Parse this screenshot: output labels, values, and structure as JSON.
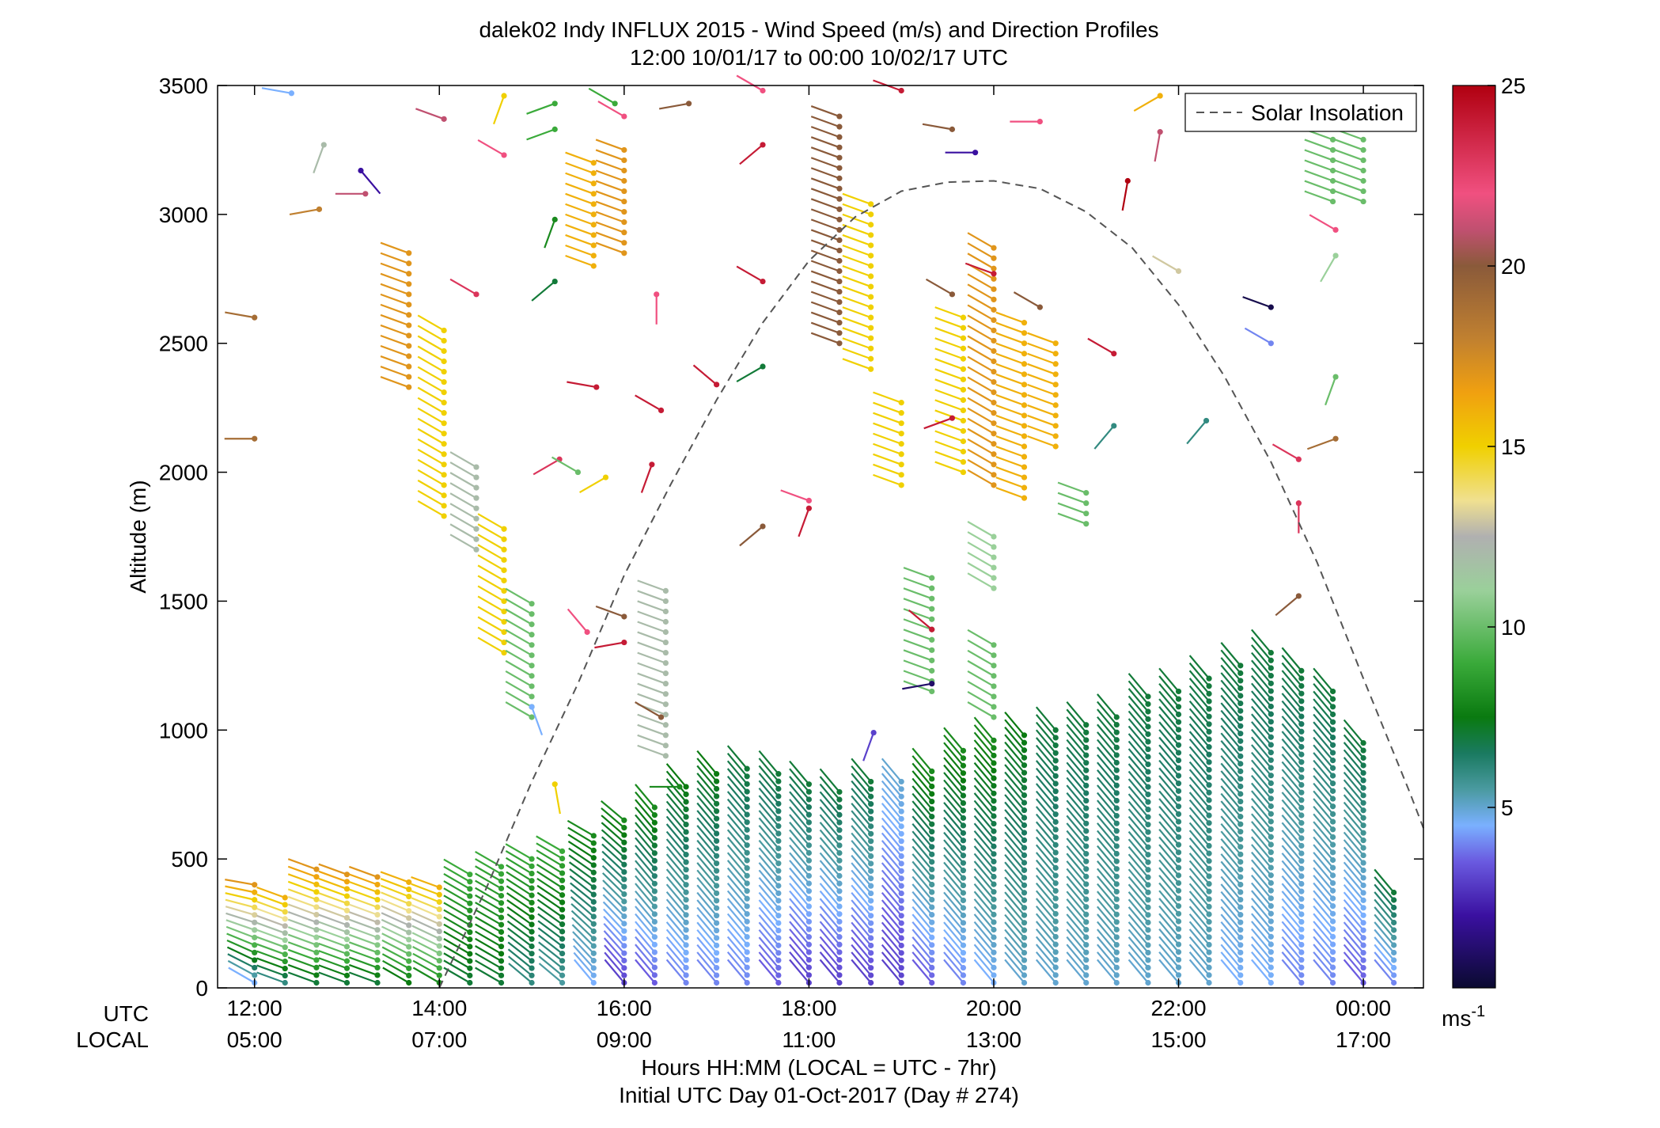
{
  "chart_data": {
    "type": "wind-profile",
    "title": "dalek02 Indy INFLUX 2015 - Wind Speed (m/s) and Direction Profiles",
    "subtitle": "12:00 10/01/17 to 00:00 10/02/17  UTC",
    "ylabel": "Altitude (m)",
    "xlabel": "Hours HH:MM  (LOCAL = UTC - 7hr)",
    "xlabel2": "Initial UTC Day 01-Oct-2017 (Day # 274)",
    "row_label_utc": "UTC",
    "row_label_local": "LOCAL",
    "ylim": [
      0,
      3500
    ],
    "xlim_hours": [
      11.6,
      24.65
    ],
    "y_ticks": [
      "0",
      "500",
      "1000",
      "1500",
      "2000",
      "2500",
      "3000",
      "3500"
    ],
    "y_tick_values": [
      0,
      500,
      1000,
      1500,
      2000,
      2500,
      3000,
      3500
    ],
    "x_tick_hours": [
      12,
      14,
      16,
      18,
      20,
      22,
      24
    ],
    "x_ticks_utc": [
      "12:00",
      "14:00",
      "16:00",
      "18:00",
      "20:00",
      "22:00",
      "00:00"
    ],
    "x_ticks_local": [
      "05:00",
      "07:00",
      "09:00",
      "11:00",
      "13:00",
      "15:00",
      "17:00"
    ],
    "legend": {
      "label": "Solar Insolation",
      "position": "top-right",
      "style": "dashed",
      "color": "#555555"
    },
    "colorbar": {
      "range": [
        0,
        25
      ],
      "ticks": [
        "5",
        "10",
        "15",
        "20",
        "25"
      ],
      "tick_values": [
        5,
        10,
        15,
        20,
        25
      ],
      "unit_label": "ms",
      "unit_superscript": "-1",
      "colors": [
        {
          "v": 0,
          "c": "#0a0a30"
        },
        {
          "v": 2,
          "c": "#3a10a0"
        },
        {
          "v": 3.5,
          "c": "#6a5ae0"
        },
        {
          "v": 4.5,
          "c": "#7ab0ff"
        },
        {
          "v": 5.5,
          "c": "#4a9aa0"
        },
        {
          "v": 6.5,
          "c": "#1a7a60"
        },
        {
          "v": 7.5,
          "c": "#0a7a10"
        },
        {
          "v": 9,
          "c": "#3aaa3a"
        },
        {
          "v": 11,
          "c": "#9ad09a"
        },
        {
          "v": 12.5,
          "c": "#b0b0b0"
        },
        {
          "v": 13.5,
          "c": "#f0e090"
        },
        {
          "v": 15,
          "c": "#f0d000"
        },
        {
          "v": 16.5,
          "c": "#f0a010"
        },
        {
          "v": 18,
          "c": "#c08030"
        },
        {
          "v": 20,
          "c": "#8a5a3a"
        },
        {
          "v": 21,
          "c": "#c05070"
        },
        {
          "v": 22,
          "c": "#f05080"
        },
        {
          "v": 25,
          "c": "#b00010"
        }
      ]
    },
    "solar_insolation": {
      "hours": [
        14.0,
        14.5,
        15.0,
        15.5,
        16.0,
        16.5,
        17.0,
        17.5,
        18.0,
        18.5,
        19.0,
        19.5,
        20.0,
        20.5,
        21.0,
        21.5,
        22.0,
        22.5,
        23.0,
        23.5,
        24.0,
        24.5,
        24.65
      ],
      "altitude_equiv": [
        0,
        380,
        800,
        1180,
        1600,
        1950,
        2280,
        2580,
        2820,
        2990,
        3090,
        3125,
        3130,
        3100,
        3010,
        2870,
        2650,
        2370,
        2040,
        1650,
        1200,
        760,
        620
      ]
    },
    "profiles": [
      {
        "t": 12.0,
        "ymax": 400,
        "dz": 30,
        "dir": [
          300,
          280
        ],
        "spd": [
          4.5,
          17
        ]
      },
      {
        "t": 12.33,
        "ymax": 350,
        "dz": 30,
        "dir": [
          290,
          290
        ],
        "spd": [
          6,
          16
        ]
      },
      {
        "t": 12.67,
        "ymax": 460,
        "dz": 30,
        "dir": [
          290,
          290
        ],
        "spd": [
          7,
          17
        ]
      },
      {
        "t": 13.0,
        "ymax": 440,
        "dz": 30,
        "dir": [
          290,
          290
        ],
        "spd": [
          7,
          17
        ]
      },
      {
        "t": 13.33,
        "ymax": 430,
        "dz": 30,
        "dir": [
          290,
          290
        ],
        "spd": [
          7,
          17
        ]
      },
      {
        "t": 13.67,
        "ymax": 410,
        "dz": 30,
        "dir": [
          300,
          290
        ],
        "spd": [
          7.5,
          16
        ]
      },
      {
        "t": 14.0,
        "ymax": 390,
        "dz": 30,
        "dir": [
          300,
          290
        ],
        "spd": [
          8,
          16
        ]
      },
      {
        "t": 14.33,
        "ymax": 440,
        "dz": 30,
        "dir": [
          300,
          300
        ],
        "spd": [
          7,
          9
        ]
      },
      {
        "t": 14.67,
        "ymax": 470,
        "dz": 30,
        "dir": [
          300,
          300
        ],
        "spd": [
          7,
          9
        ]
      },
      {
        "t": 15.0,
        "ymax": 500,
        "dz": 30,
        "dir": [
          310,
          300
        ],
        "spd": [
          6,
          9
        ]
      },
      {
        "t": 15.33,
        "ymax": 530,
        "dz": 30,
        "dir": [
          310,
          300
        ],
        "spd": [
          5.5,
          9
        ]
      },
      {
        "t": 15.67,
        "ymax": 590,
        "dz": 30,
        "dir": [
          320,
          300
        ],
        "spd": [
          4.5,
          8
        ]
      },
      {
        "t": 16.0,
        "ymax": 650,
        "dz": 30,
        "dir": [
          320,
          310
        ],
        "spd": [
          3,
          8
        ]
      },
      {
        "t": 16.33,
        "ymax": 700,
        "dz": 30,
        "dir": [
          320,
          320
        ],
        "spd": [
          3.5,
          8
        ]
      },
      {
        "t": 16.67,
        "ymax": 780,
        "dz": 30,
        "dir": [
          320,
          320
        ],
        "spd": [
          4,
          7.5
        ]
      },
      {
        "t": 17.0,
        "ymax": 830,
        "dz": 30,
        "dir": [
          320,
          320
        ],
        "spd": [
          4,
          7.5
        ]
      },
      {
        "t": 17.33,
        "ymax": 850,
        "dz": 30,
        "dir": [
          320,
          320
        ],
        "spd": [
          4,
          7
        ]
      },
      {
        "t": 17.67,
        "ymax": 830,
        "dz": 30,
        "dir": [
          320,
          320
        ],
        "spd": [
          3.5,
          7
        ]
      },
      {
        "t": 18.0,
        "ymax": 790,
        "dz": 30,
        "dir": [
          320,
          320
        ],
        "spd": [
          3,
          7
        ]
      },
      {
        "t": 18.33,
        "ymax": 760,
        "dz": 30,
        "dir": [
          320,
          320
        ],
        "spd": [
          3,
          7
        ]
      },
      {
        "t": 18.67,
        "ymax": 800,
        "dz": 30,
        "dir": [
          320,
          320
        ],
        "spd": [
          3,
          7
        ]
      },
      {
        "t": 19.0,
        "ymax": 800,
        "dz": 30,
        "dir": [
          320,
          320
        ],
        "spd": [
          3,
          5
        ]
      },
      {
        "t": 19.33,
        "ymax": 840,
        "dz": 30,
        "dir": [
          320,
          320
        ],
        "spd": [
          3.5,
          8
        ]
      },
      {
        "t": 19.67,
        "ymax": 920,
        "dz": 30,
        "dir": [
          320,
          320
        ],
        "spd": [
          4,
          8
        ]
      },
      {
        "t": 20.0,
        "ymax": 960,
        "dz": 30,
        "dir": [
          320,
          320
        ],
        "spd": [
          4.5,
          8
        ]
      },
      {
        "t": 20.33,
        "ymax": 980,
        "dz": 30,
        "dir": [
          320,
          320
        ],
        "spd": [
          5,
          7.5
        ]
      },
      {
        "t": 20.67,
        "ymax": 1000,
        "dz": 30,
        "dir": [
          320,
          320
        ],
        "spd": [
          5,
          7
        ]
      },
      {
        "t": 21.0,
        "ymax": 1020,
        "dz": 30,
        "dir": [
          320,
          320
        ],
        "spd": [
          5,
          7
        ]
      },
      {
        "t": 21.33,
        "ymax": 1050,
        "dz": 30,
        "dir": [
          320,
          320
        ],
        "spd": [
          5,
          7
        ]
      },
      {
        "t": 21.67,
        "ymax": 1130,
        "dz": 30,
        "dir": [
          320,
          320
        ],
        "spd": [
          5,
          7
        ]
      },
      {
        "t": 22.0,
        "ymax": 1150,
        "dz": 30,
        "dir": [
          320,
          320
        ],
        "spd": [
          5,
          7
        ]
      },
      {
        "t": 22.33,
        "ymax": 1200,
        "dz": 30,
        "dir": [
          320,
          320
        ],
        "spd": [
          5,
          7
        ]
      },
      {
        "t": 22.67,
        "ymax": 1250,
        "dz": 30,
        "dir": [
          320,
          320
        ],
        "spd": [
          4.5,
          7
        ]
      },
      {
        "t": 23.0,
        "ymax": 1300,
        "dz": 30,
        "dir": [
          320,
          320
        ],
        "spd": [
          4.5,
          7
        ]
      },
      {
        "t": 23.33,
        "ymax": 1230,
        "dz": 30,
        "dir": [
          320,
          320
        ],
        "spd": [
          4,
          7
        ]
      },
      {
        "t": 23.67,
        "ymax": 1150,
        "dz": 30,
        "dir": [
          320,
          320
        ],
        "spd": [
          4,
          7
        ]
      },
      {
        "t": 24.0,
        "ymax": 950,
        "dz": 30,
        "dir": [
          320,
          320
        ],
        "spd": [
          3.5,
          7
        ]
      },
      {
        "t": 24.33,
        "ymax": 370,
        "dz": 30,
        "dir": [
          320,
          320
        ],
        "spd": [
          4,
          7
        ]
      }
    ],
    "upper_columns": [
      {
        "t": 13.67,
        "y0": 2330,
        "y1": 2850,
        "dz": 40,
        "dir": 290,
        "spd": 17
      },
      {
        "t": 14.05,
        "y0": 1830,
        "y1": 2580,
        "dz": 40,
        "dir": 300,
        "spd": 15
      },
      {
        "t": 14.4,
        "y0": 1700,
        "y1": 2050,
        "dz": 40,
        "dir": 300,
        "spd": 12
      },
      {
        "t": 14.7,
        "y0": 1300,
        "y1": 1800,
        "dz": 40,
        "dir": 300,
        "spd": 15
      },
      {
        "t": 15.0,
        "y0": 1050,
        "y1": 1500,
        "dz": 40,
        "dir": 300,
        "spd": 10
      },
      {
        "t": 15.67,
        "y0": 2800,
        "y1": 3200,
        "dz": 40,
        "dir": 290,
        "spd": 16
      },
      {
        "t": 16.0,
        "y0": 2850,
        "y1": 3250,
        "dz": 40,
        "dir": 290,
        "spd": 17
      },
      {
        "t": 16.45,
        "y0": 900,
        "y1": 1550,
        "dz": 40,
        "dir": 290,
        "spd": 12
      },
      {
        "t": 18.33,
        "y0": 2500,
        "y1": 3400,
        "dz": 40,
        "dir": 290,
        "spd": 20
      },
      {
        "t": 18.67,
        "y0": 2400,
        "y1": 3050,
        "dz": 40,
        "dir": 290,
        "spd": 15
      },
      {
        "t": 19.0,
        "y0": 1950,
        "y1": 2300,
        "dz": 40,
        "dir": 290,
        "spd": 15
      },
      {
        "t": 19.33,
        "y0": 1150,
        "y1": 1600,
        "dz": 40,
        "dir": 290,
        "spd": 10
      },
      {
        "t": 19.67,
        "y0": 2000,
        "y1": 2600,
        "dz": 40,
        "dir": 290,
        "spd": 15
      },
      {
        "t": 20.0,
        "y0": 1950,
        "y1": 2900,
        "dz": 40,
        "dir": 300,
        "spd": 17
      },
      {
        "t": 20.0,
        "y0": 1550,
        "y1": 1750,
        "dz": 40,
        "dir": 300,
        "spd": 11
      },
      {
        "t": 20.33,
        "y0": 1900,
        "y1": 2600,
        "dz": 40,
        "dir": 290,
        "spd": 16
      },
      {
        "t": 20.67,
        "y0": 2100,
        "y1": 2500,
        "dz": 40,
        "dir": 290,
        "spd": 16
      },
      {
        "t": 20.0,
        "y0": 1050,
        "y1": 1350,
        "dz": 40,
        "dir": 300,
        "spd": 10
      },
      {
        "t": 23.67,
        "y0": 3050,
        "y1": 3300,
        "dz": 40,
        "dir": 290,
        "spd": 10
      },
      {
        "t": 24.0,
        "y0": 3050,
        "y1": 3300,
        "dz": 40,
        "dir": 290,
        "spd": 10
      },
      {
        "t": 21.0,
        "y0": 1800,
        "y1": 1950,
        "dz": 40,
        "dir": 290,
        "spd": 10
      }
    ],
    "scattered_barbs": [
      {
        "t": 12.4,
        "alt": 3470,
        "dir": 280,
        "spd": 4.5
      },
      {
        "t": 12.0,
        "alt": 2600,
        "dir": 280,
        "spd": 19
      },
      {
        "t": 12.0,
        "alt": 2130,
        "dir": 270,
        "spd": 19
      },
      {
        "t": 12.75,
        "alt": 3270,
        "dir": 200,
        "spd": 12
      },
      {
        "t": 13.15,
        "alt": 3170,
        "dir": 140,
        "spd": 2
      },
      {
        "t": 13.2,
        "alt": 3080,
        "dir": 270,
        "spd": 21
      },
      {
        "t": 12.7,
        "alt": 3020,
        "dir": 260,
        "spd": 18
      },
      {
        "t": 14.05,
        "alt": 3370,
        "dir": 290,
        "spd": 21
      },
      {
        "t": 14.7,
        "alt": 3460,
        "dir": 200,
        "spd": 15
      },
      {
        "t": 14.7,
        "alt": 3230,
        "dir": 300,
        "spd": 22
      },
      {
        "t": 15.25,
        "alt": 3430,
        "dir": 250,
        "spd": 9
      },
      {
        "t": 15.25,
        "alt": 3330,
        "dir": 250,
        "spd": 9
      },
      {
        "t": 15.9,
        "alt": 3430,
        "dir": 300,
        "spd": 9
      },
      {
        "t": 15.25,
        "alt": 2980,
        "dir": 200,
        "spd": 8
      },
      {
        "t": 15.25,
        "alt": 2740,
        "dir": 230,
        "spd": 7
      },
      {
        "t": 14.4,
        "alt": 2690,
        "dir": 300,
        "spd": 23
      },
      {
        "t": 16.0,
        "alt": 3380,
        "dir": 300,
        "spd": 22
      },
      {
        "t": 16.35,
        "alt": 2690,
        "dir": 180,
        "spd": 22
      },
      {
        "t": 16.7,
        "alt": 3430,
        "dir": 260,
        "spd": 20
      },
      {
        "t": 17.5,
        "alt": 3480,
        "dir": 300,
        "spd": 22
      },
      {
        "t": 17.5,
        "alt": 3270,
        "dir": 230,
        "spd": 24
      },
      {
        "t": 17.5,
        "alt": 2740,
        "dir": 300,
        "spd": 24
      },
      {
        "t": 17.0,
        "alt": 2340,
        "dir": 310,
        "spd": 24
      },
      {
        "t": 17.5,
        "alt": 1790,
        "dir": 230,
        "spd": 20
      },
      {
        "t": 17.5,
        "alt": 2410,
        "dir": 240,
        "spd": 7
      },
      {
        "t": 15.7,
        "alt": 2330,
        "dir": 280,
        "spd": 24
      },
      {
        "t": 15.3,
        "alt": 2050,
        "dir": 240,
        "spd": 23
      },
      {
        "t": 15.5,
        "alt": 2000,
        "dir": 300,
        "spd": 10
      },
      {
        "t": 15.6,
        "alt": 1380,
        "dir": 320,
        "spd": 22
      },
      {
        "t": 16.0,
        "alt": 1440,
        "dir": 290,
        "spd": 20
      },
      {
        "t": 16.0,
        "alt": 1340,
        "dir": 260,
        "spd": 24
      },
      {
        "t": 16.3,
        "alt": 2030,
        "dir": 200,
        "spd": 24
      },
      {
        "t": 16.4,
        "alt": 2240,
        "dir": 300,
        "spd": 24
      },
      {
        "t": 18.0,
        "alt": 1890,
        "dir": 290,
        "spd": 22
      },
      {
        "t": 18.0,
        "alt": 1860,
        "dir": 200,
        "spd": 24
      },
      {
        "t": 19.0,
        "alt": 3480,
        "dir": 290,
        "spd": 24
      },
      {
        "t": 19.55,
        "alt": 3330,
        "dir": 280,
        "spd": 20
      },
      {
        "t": 19.55,
        "alt": 2690,
        "dir": 300,
        "spd": 20
      },
      {
        "t": 19.55,
        "alt": 2210,
        "dir": 250,
        "spd": 24
      },
      {
        "t": 19.33,
        "alt": 1390,
        "dir": 310,
        "spd": 24
      },
      {
        "t": 19.8,
        "alt": 3240,
        "dir": 270,
        "spd": 2
      },
      {
        "t": 20.0,
        "alt": 2770,
        "dir": 290,
        "spd": 24
      },
      {
        "t": 20.5,
        "alt": 3360,
        "dir": 270,
        "spd": 22
      },
      {
        "t": 20.5,
        "alt": 2640,
        "dir": 300,
        "spd": 20
      },
      {
        "t": 21.3,
        "alt": 2460,
        "dir": 300,
        "spd": 24
      },
      {
        "t": 21.45,
        "alt": 3130,
        "dir": 190,
        "spd": 25
      },
      {
        "t": 21.8,
        "alt": 3320,
        "dir": 190,
        "spd": 21
      },
      {
        "t": 21.8,
        "alt": 3460,
        "dir": 240,
        "spd": 16
      },
      {
        "t": 23.0,
        "alt": 2640,
        "dir": 290,
        "spd": 0.5
      },
      {
        "t": 23.0,
        "alt": 2500,
        "dir": 300,
        "spd": 4
      },
      {
        "t": 23.3,
        "alt": 2050,
        "dir": 300,
        "spd": 23
      },
      {
        "t": 23.3,
        "alt": 1880,
        "dir": 180,
        "spd": 23
      },
      {
        "t": 23.3,
        "alt": 1520,
        "dir": 230,
        "spd": 20
      },
      {
        "t": 23.7,
        "alt": 2940,
        "dir": 300,
        "spd": 22
      },
      {
        "t": 23.7,
        "alt": 2840,
        "dir": 210,
        "spd": 11
      },
      {
        "t": 23.7,
        "alt": 2130,
        "dir": 250,
        "spd": 19
      },
      {
        "t": 23.7,
        "alt": 2370,
        "dir": 200,
        "spd": 10
      },
      {
        "t": 22.3,
        "alt": 2200,
        "dir": 220,
        "spd": 6
      },
      {
        "t": 21.3,
        "alt": 2180,
        "dir": 220,
        "spd": 6
      },
      {
        "t": 22.0,
        "alt": 2780,
        "dir": 300,
        "spd": 13
      },
      {
        "t": 15.8,
        "alt": 1980,
        "dir": 240,
        "spd": 15
      },
      {
        "t": 15.25,
        "alt": 790,
        "dir": 170,
        "spd": 15
      },
      {
        "t": 15.0,
        "alt": 1090,
        "dir": 160,
        "spd": 4.5
      },
      {
        "t": 18.7,
        "alt": 990,
        "dir": 200,
        "spd": 3
      },
      {
        "t": 19.33,
        "alt": 1180,
        "dir": 260,
        "spd": 1
      },
      {
        "t": 16.4,
        "alt": 1050,
        "dir": 300,
        "spd": 20
      },
      {
        "t": 16.6,
        "alt": 780,
        "dir": 270,
        "spd": 8
      }
    ]
  }
}
